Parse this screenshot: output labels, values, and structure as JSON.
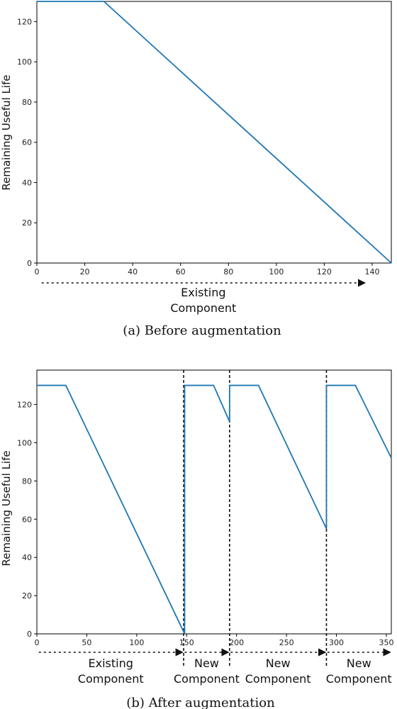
{
  "chart_data": [
    {
      "type": "line",
      "caption": "(a)  Before augmentation",
      "ylabel": "Remaining Useful Life",
      "xlim": [
        0,
        148
      ],
      "ylim": [
        0,
        130
      ],
      "xticks": [
        0,
        20,
        40,
        60,
        80,
        100,
        120,
        140
      ],
      "yticks": [
        0,
        20,
        40,
        60,
        80,
        100,
        120
      ],
      "series": [
        {
          "color": "#1f77b4",
          "x": [
            0,
            28,
            148
          ],
          "y": [
            130,
            130,
            0
          ]
        }
      ],
      "annotations": [
        {
          "lines": [
            "Existing",
            "Component"
          ],
          "arrow_x": [
            2,
            137
          ]
        }
      ]
    },
    {
      "type": "line",
      "caption": "(b)  After augmentation",
      "ylabel": "Remaining Useful Life",
      "xlim": [
        0,
        355
      ],
      "ylim": [
        0,
        138
      ],
      "xticks": [
        0,
        50,
        100,
        150,
        200,
        250,
        300,
        350
      ],
      "yticks": [
        0,
        20,
        40,
        60,
        80,
        100,
        120
      ],
      "separators": [
        147,
        193,
        290
      ],
      "series": [
        {
          "color": "#1f77b4",
          "x": [
            0,
            29,
            148,
            148,
            177,
            193,
            193,
            222,
            290,
            290,
            319,
            355
          ],
          "y": [
            130,
            130,
            0,
            130,
            130,
            111,
            130,
            130,
            55,
            130,
            130,
            92
          ]
        }
      ],
      "annotations": [
        {
          "lines": [
            "Existing",
            "Component"
          ],
          "arrow_x": [
            2,
            146
          ]
        },
        {
          "lines": [
            "New",
            "Component"
          ],
          "arrow_x": [
            148,
            192
          ]
        },
        {
          "lines": [
            "New",
            "Component"
          ],
          "arrow_x": [
            194,
            289
          ]
        },
        {
          "lines": [
            "New",
            "Component"
          ],
          "arrow_x": [
            291,
            354
          ]
        }
      ]
    }
  ]
}
